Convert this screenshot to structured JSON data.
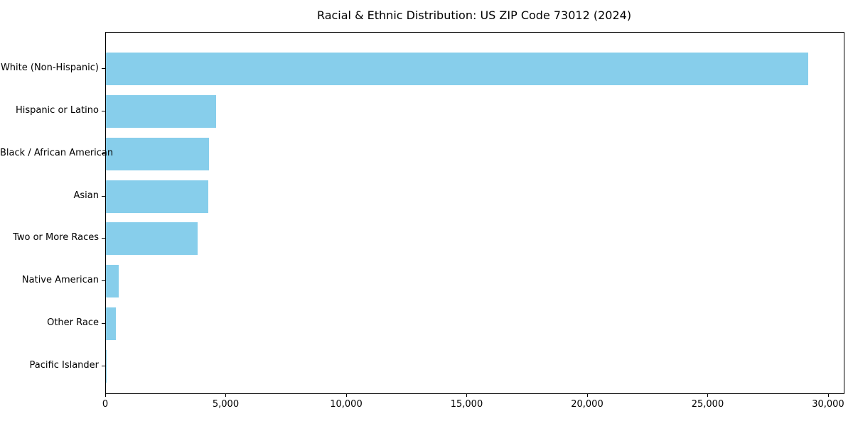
{
  "chart_data": {
    "type": "bar",
    "orientation": "horizontal",
    "title": "Racial & Ethnic Distribution: US ZIP Code 73012 (2024)",
    "categories": [
      "White (Non-Hispanic)",
      "Hispanic or Latino",
      "Black / African American",
      "Asian",
      "Two or More Races",
      "Native American",
      "Other Race",
      "Pacific Islander"
    ],
    "values": [
      29140,
      4560,
      4290,
      4255,
      3820,
      520,
      425,
      15
    ],
    "bar_color": "#87CEEB",
    "xlabel": "",
    "ylabel": "",
    "xlim": [
      0,
      30620
    ],
    "xticks": {
      "values": [
        0,
        5000,
        10000,
        15000,
        20000,
        25000,
        30000
      ],
      "labels": [
        "0",
        "5,000",
        "10,000",
        "15,000",
        "20,000",
        "25,000",
        "30,000"
      ]
    },
    "grid": false,
    "legend": null
  }
}
